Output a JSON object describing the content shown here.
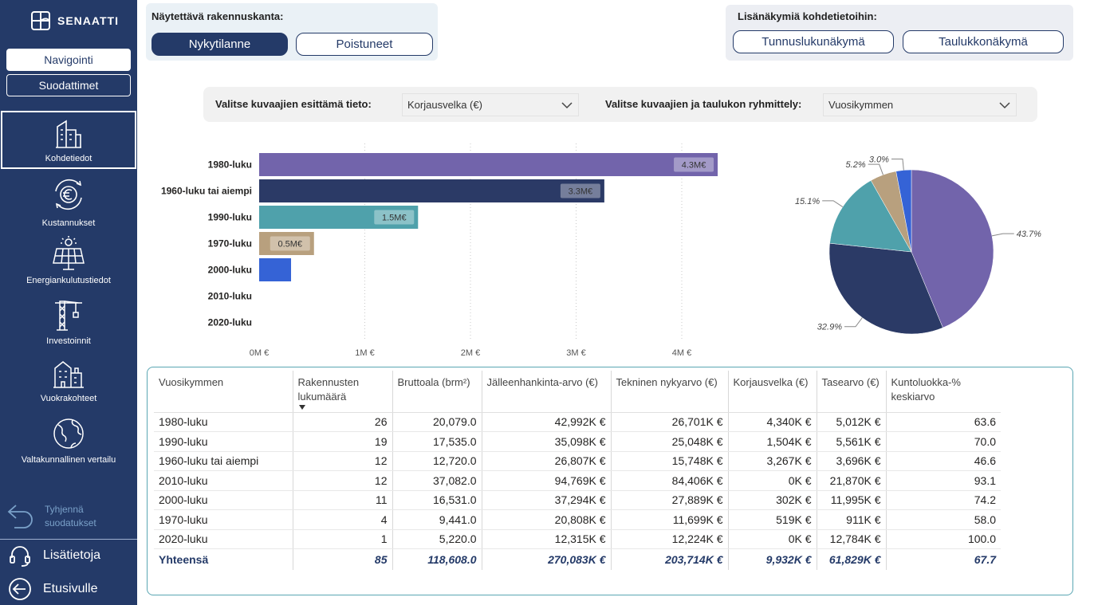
{
  "sidebar": {
    "logo_text": "SENAATTI",
    "nav_button": "Navigointi",
    "filters_button": "Suodattimet",
    "items": [
      {
        "label": "Kohdetiedot"
      },
      {
        "label": "Kustannukset"
      },
      {
        "label": "Energiankulutustiedot"
      },
      {
        "label": "Investoinnit"
      },
      {
        "label": "Vuokrakohteet"
      },
      {
        "label": "Valtakunnallinen vertailu"
      }
    ],
    "clear_filters_line1": "Tyhjennä",
    "clear_filters_line2": "suodatukset",
    "info": "Lisätietoja",
    "home": "Etusivulle"
  },
  "building_stock": {
    "title": "Näytettävä rakennuskanta:",
    "options": [
      "Nykytilanne",
      "Poistuneet"
    ],
    "selected": "Nykytilanne"
  },
  "extra_views": {
    "title": "Lisänäkymiä kohdetietoihin:",
    "buttons": [
      "Tunnuslukunäkymä",
      "Taulukkonäkymä"
    ]
  },
  "filters": {
    "metric_label": "Valitse kuvaajien esittämä tieto:",
    "metric_value": "Korjausvelka (€)",
    "grouping_label": "Valitse kuvaajien ja taulukon ryhmittely:",
    "grouping_value": "Vuosikymmen"
  },
  "colors": {
    "sidebar": "#243a68",
    "purple": "#7264ab",
    "navy": "#2b3a66",
    "teal": "#4fa1ab",
    "tan": "#b8a07e",
    "blue": "#3563d6"
  },
  "chart_data": [
    {
      "type": "bar",
      "orientation": "horizontal",
      "categories": [
        "1980-luku",
        "1960-luku tai aiempi",
        "1990-luku",
        "1970-luku",
        "2000-luku",
        "2010-luku",
        "2020-luku"
      ],
      "values": [
        4.34,
        3.267,
        1.504,
        0.519,
        0.302,
        0,
        0
      ],
      "data_labels": [
        "4.3M€",
        "3.3M€",
        "1.5M€",
        "0.5M€",
        "",
        "",
        ""
      ],
      "bar_colors": [
        "#7264ab",
        "#2b3a66",
        "#4fa1ab",
        "#b8a07e",
        "#3563d6",
        "#999999",
        "#999999"
      ],
      "x_ticks": [
        "0M €",
        "1M €",
        "2M €",
        "3M €",
        "4M €"
      ],
      "xlim": [
        0,
        4.5
      ],
      "grid": "vertical-dotted"
    },
    {
      "type": "pie",
      "slices": [
        {
          "label": "43.7%",
          "value": 43.7,
          "color": "#7264ab"
        },
        {
          "label": "32.9%",
          "value": 32.9,
          "color": "#2b3a66"
        },
        {
          "label": "15.1%",
          "value": 15.1,
          "color": "#4fa1ab"
        },
        {
          "label": "5.2%",
          "value": 5.2,
          "color": "#b8a07e"
        },
        {
          "label": "3.0%",
          "value": 3.0,
          "color": "#3563d6"
        }
      ]
    }
  ],
  "table": {
    "headers": [
      "Vuosikymmen",
      "Rakennusten lukumäärä",
      "Bruttoala (brm²)",
      "Jälleenhankinta-arvo (€)",
      "Tekninen nykyarvo (€)",
      "Korjausvelka (€)",
      "Tasearvo (€)",
      "Kuntoluokka-% keskiarvo"
    ],
    "rows": [
      [
        "1980-luku",
        "26",
        "20,079.0",
        "42,992K €",
        "26,701K €",
        "4,340K €",
        "5,012K €",
        "63.6"
      ],
      [
        "1990-luku",
        "19",
        "17,535.0",
        "35,098K €",
        "25,048K €",
        "1,504K €",
        "5,561K €",
        "70.0"
      ],
      [
        "1960-luku tai aiempi",
        "12",
        "12,720.0",
        "26,807K €",
        "15,748K €",
        "3,267K €",
        "3,696K €",
        "46.6"
      ],
      [
        "2010-luku",
        "12",
        "37,082.0",
        "94,769K €",
        "84,406K €",
        "0K €",
        "21,870K €",
        "93.1"
      ],
      [
        "2000-luku",
        "11",
        "16,531.0",
        "37,294K €",
        "27,889K €",
        "302K €",
        "11,995K €",
        "74.2"
      ],
      [
        "1970-luku",
        "4",
        "9,441.0",
        "20,808K €",
        "11,699K €",
        "519K €",
        "911K €",
        "58.0"
      ],
      [
        "2020-luku",
        "1",
        "5,220.0",
        "12,315K €",
        "12,224K €",
        "0K €",
        "12,784K €",
        "100.0"
      ]
    ],
    "total": [
      "Yhteensä",
      "85",
      "118,608.0",
      "270,083K €",
      "203,714K €",
      "9,932K €",
      "61,829K €",
      "67.7"
    ]
  }
}
